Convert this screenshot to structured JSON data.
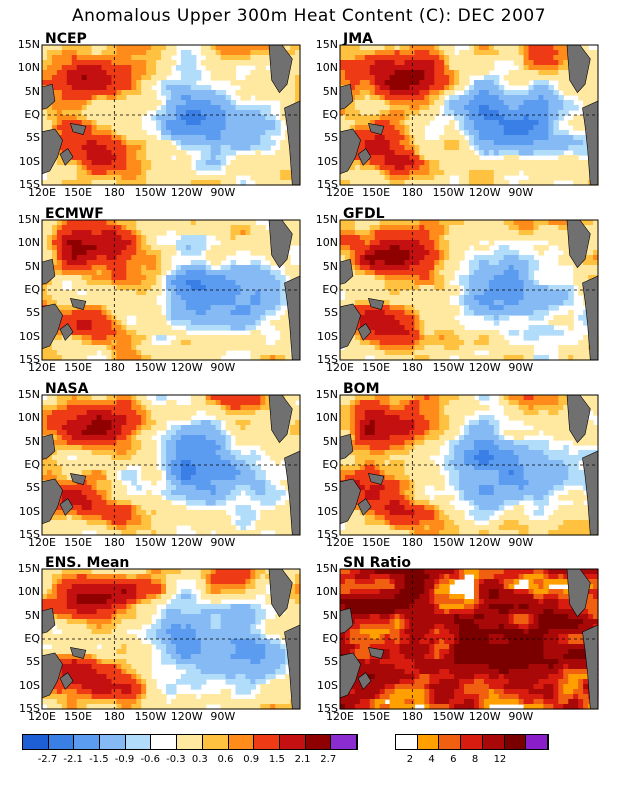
{
  "title": "Anomalous Upper 300m Heat Content (C): DEC 2007",
  "lat_labels": [
    "15N",
    "10N",
    "5N",
    "EQ",
    "5S",
    "10S",
    "15S"
  ],
  "lon_labels": [
    "120E",
    "150E",
    "180",
    "150W",
    "120W",
    "90W"
  ],
  "panels": [
    {
      "label": "NCEP",
      "type": "anomaly"
    },
    {
      "label": "JMA",
      "type": "anomaly"
    },
    {
      "label": "ECMWF",
      "type": "anomaly"
    },
    {
      "label": "GFDL",
      "type": "anomaly"
    },
    {
      "label": "NASA",
      "type": "anomaly"
    },
    {
      "label": "BOM",
      "type": "anomaly"
    },
    {
      "label": "ENS. Mean",
      "type": "anomaly"
    },
    {
      "label": "SN Ratio",
      "type": "snr"
    }
  ],
  "anomaly_colorbar": {
    "colors": [
      "#1f5fd6",
      "#3a7fe6",
      "#5c9cf0",
      "#86baf5",
      "#b1dcfa",
      "#ffffff",
      "#ffe8a0",
      "#ffc240",
      "#ff8c1a",
      "#ef3a16",
      "#c41010",
      "#8f0000",
      "#8a2ccf"
    ],
    "labels": [
      "-2.7",
      "-2.1",
      "-1.5",
      "-0.9",
      "-0.6",
      "-0.3",
      "0.3",
      "0.6",
      "0.9",
      "1.5",
      "2.1",
      "2.7"
    ]
  },
  "snr_colorbar": {
    "colors": [
      "#ffffff",
      "#ffa000",
      "#f06010",
      "#d81c10",
      "#a80808",
      "#7a0000",
      "#8a1ec8"
    ],
    "labels": [
      "2",
      "4",
      "6",
      "8",
      "12"
    ]
  },
  "colors": {
    "land": "#707070",
    "grid_line": "#000000"
  }
}
